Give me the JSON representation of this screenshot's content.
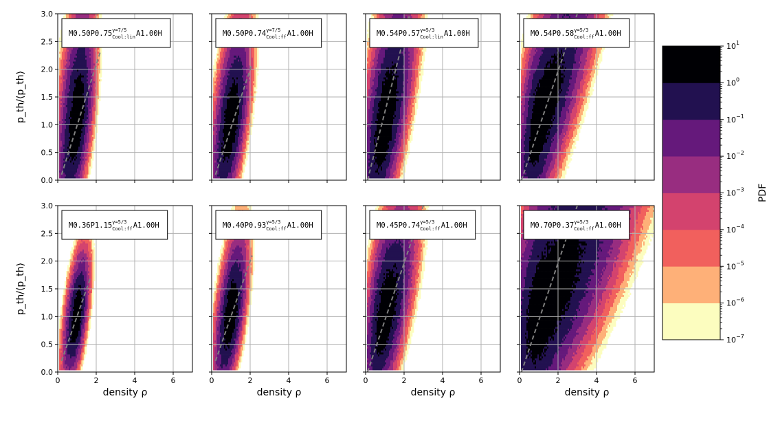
{
  "chart_data": {
    "type": "heatmap",
    "description_free": true,
    "x_label": "density ρ",
    "y_label": "p_th/⟨p_th⟩",
    "x_range": [
      0,
      7
    ],
    "y_range": [
      0,
      3
    ],
    "x_ticks": [
      "0",
      "2",
      "4",
      "6"
    ],
    "x_tick_values": [
      0,
      2,
      4,
      6
    ],
    "y_ticks": [
      "0.0",
      "0.5",
      "1.0",
      "1.5",
      "2.0",
      "2.5",
      "3.0"
    ],
    "y_tick_values": [
      0,
      0.5,
      1,
      1.5,
      2,
      2.5,
      3
    ],
    "grid": true,
    "colorbar": {
      "label": "PDF",
      "scale": "log",
      "ticks": [
        {
          "base": "10",
          "exp": "1"
        },
        {
          "base": "10",
          "exp": "0"
        },
        {
          "base": "10",
          "exp": "−1"
        },
        {
          "base": "10",
          "exp": "−2"
        },
        {
          "base": "10",
          "exp": "−3"
        },
        {
          "base": "10",
          "exp": "−4"
        },
        {
          "base": "10",
          "exp": "−5"
        },
        {
          "base": "10",
          "exp": "−6"
        },
        {
          "base": "10",
          "exp": "−7"
        }
      ],
      "colors_low_to_high": [
        "#fcfdbf",
        "#feb078",
        "#f1605d",
        "#d3436e",
        "#982d80",
        "#65197b",
        "#221150",
        "#000004"
      ]
    },
    "panels": [
      {
        "row": 0,
        "col": 0,
        "label": {
          "pre": "M0.50P0.75",
          "sup": "γ=7/5",
          "sub": "Cool:lin",
          "post": "A1.00H"
        },
        "dist": {
          "cx": 1.0,
          "cy": 1.0,
          "slope": 1.0,
          "sx": 0.45,
          "sy": 0.55,
          "ax": 0.85,
          "ay": 1.6
        },
        "dashed": [
          [
            0.2,
            0.1
          ],
          [
            2.2,
            2.3
          ]
        ]
      },
      {
        "row": 0,
        "col": 1,
        "label": {
          "pre": "M0.50P0.74",
          "sup": "γ=7/5",
          "sub": "Cool:ff",
          "post": "A1.00H"
        },
        "dist": {
          "cx": 1.0,
          "cy": 1.0,
          "slope": 1.0,
          "sx": 0.45,
          "sy": 0.52,
          "ax": 0.95,
          "ay": 1.35
        },
        "dashed": [
          [
            0.2,
            0.1
          ],
          [
            2.1,
            2.1
          ]
        ]
      },
      {
        "row": 0,
        "col": 2,
        "label": {
          "pre": "M0.54P0.57",
          "sup": "γ=5/3",
          "sub": "Cool:lin",
          "post": "A1.00H"
        },
        "dist": {
          "cx": 1.0,
          "cy": 1.0,
          "slope": 1.0,
          "sx": 0.55,
          "sy": 0.62,
          "ax": 1.2,
          "ay": 1.4
        },
        "dashed": [
          [
            0.1,
            0.0
          ],
          [
            2.3,
            3.0
          ]
        ]
      },
      {
        "row": 0,
        "col": 3,
        "label": {
          "pre": "M0.54P0.58",
          "sup": "γ=5/3",
          "sub": "Cool:ff",
          "post": "A1.00H"
        },
        "dist": {
          "cx": 1.0,
          "cy": 1.0,
          "slope": 0.8,
          "sx": 0.5,
          "sy": 0.62,
          "ax": 2.6,
          "ay": 1.25
        },
        "dashed": [
          [
            0.1,
            0.0
          ],
          [
            3.0,
            3.0
          ]
        ]
      },
      {
        "row": 1,
        "col": 0,
        "label": {
          "pre": "M0.36P1.15",
          "sup": "γ=5/3",
          "sub": "Cool:ff",
          "post": "A1.00H"
        },
        "dist": {
          "cx": 1.0,
          "cy": 1.0,
          "slope": 1.0,
          "sx": 0.32,
          "sy": 0.38,
          "ax": 0.85,
          "ay": 1.2
        },
        "dashed": [
          [
            0.2,
            0.2
          ],
          [
            1.7,
            1.7
          ]
        ]
      },
      {
        "row": 1,
        "col": 1,
        "label": {
          "pre": "M0.40P0.93",
          "sup": "γ=5/3",
          "sub": "Cool:ff",
          "post": "A1.00H"
        },
        "dist": {
          "cx": 1.0,
          "cy": 1.0,
          "slope": 1.0,
          "sx": 0.38,
          "sy": 0.45,
          "ax": 0.95,
          "ay": 1.25
        },
        "dashed": [
          [
            0.2,
            0.2
          ],
          [
            2.1,
            2.1
          ]
        ]
      },
      {
        "row": 1,
        "col": 2,
        "label": {
          "pre": "M0.45P0.74",
          "sup": "γ=5/3",
          "sub": "Cool:ff",
          "post": "A1.00H"
        },
        "dist": {
          "cx": 1.0,
          "cy": 1.0,
          "slope": 0.85,
          "sx": 0.48,
          "sy": 0.58,
          "ax": 1.4,
          "ay": 1.25
        },
        "dashed": [
          [
            0.1,
            0.0
          ],
          [
            3.0,
            3.0
          ]
        ]
      },
      {
        "row": 1,
        "col": 3,
        "label": {
          "pre": "M0.70P0.37",
          "sup": "γ=5/3",
          "sub": "Cool:ff",
          "post": "A1.00H"
        },
        "dist": {
          "cx": 1.1,
          "cy": 1.05,
          "slope": 0.55,
          "sx": 0.75,
          "sy": 0.8,
          "ax": 3.0,
          "ay": 1.3
        },
        "dashed": [
          [
            0.1,
            0.0
          ],
          [
            3.0,
            3.0
          ]
        ]
      }
    ]
  }
}
